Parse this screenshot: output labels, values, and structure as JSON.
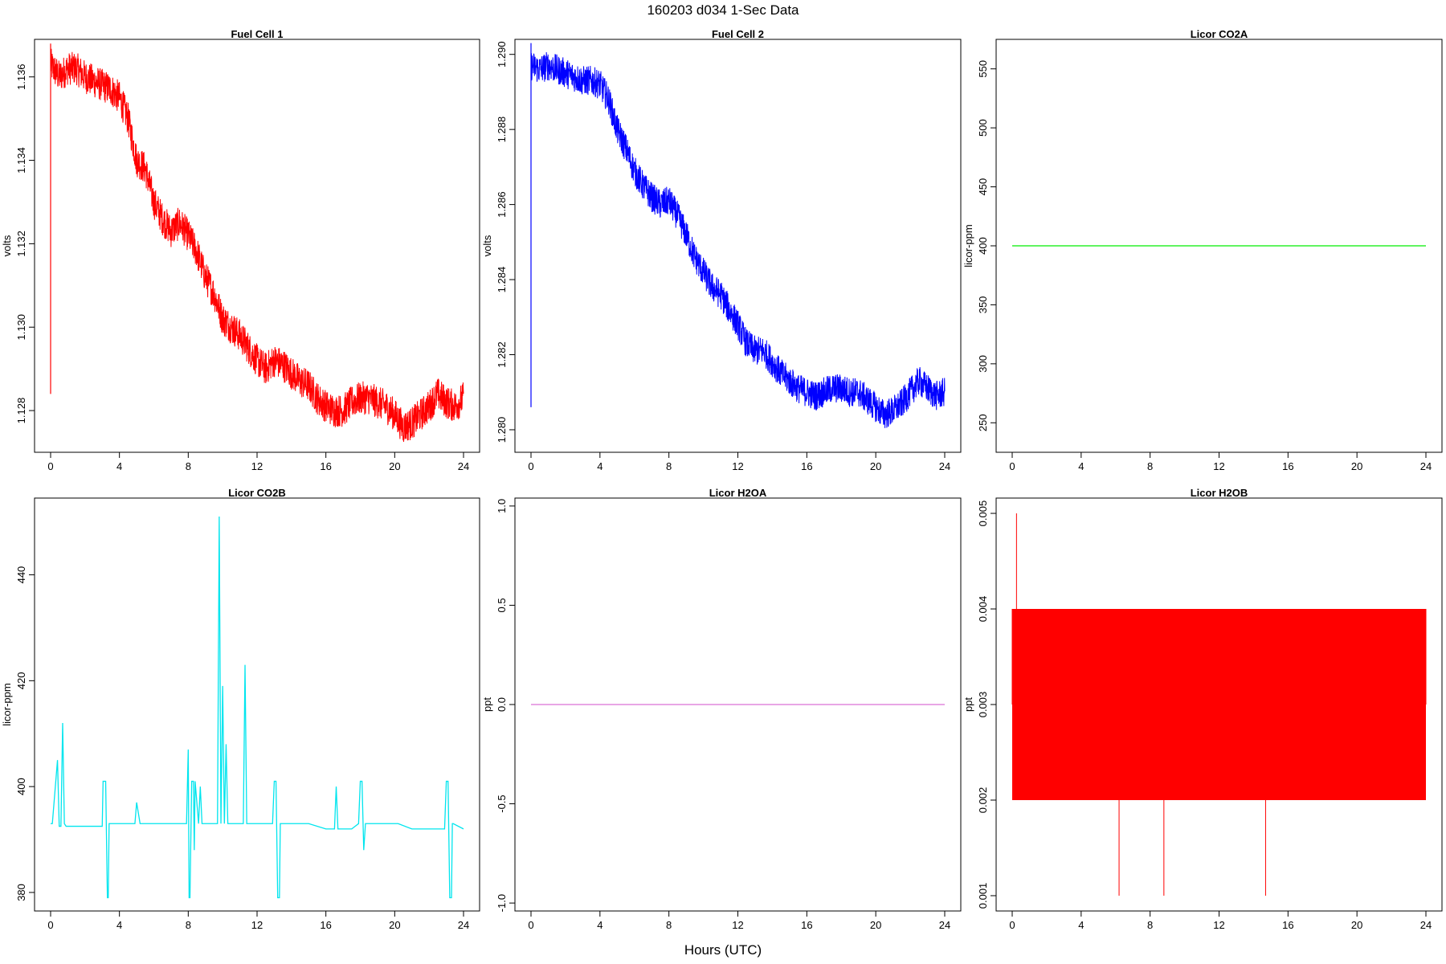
{
  "title": "160203   d034   1-Sec Data",
  "xlabel": "Hours (UTC)",
  "chart_data": [
    {
      "type": "line",
      "title": "Fuel Cell 1",
      "ylabel": "volts",
      "color": "#ff0000",
      "xlim": [
        0,
        24
      ],
      "ylim": [
        1.127,
        1.1369
      ],
      "xticks": [
        "0",
        "4",
        "8",
        "12",
        "16",
        "20",
        "24"
      ],
      "yticks": [
        "1.128",
        "1.130",
        "1.132",
        "1.134",
        "1.136"
      ],
      "noise": 0.0004,
      "spike": {
        "x": 0.0,
        "low": 1.1284,
        "high": 1.1368
      },
      "series": [
        {
          "x": [
            0,
            0.5,
            1,
            1.5,
            2,
            2.5,
            3,
            3.5,
            4,
            4.5,
            5,
            5.5,
            6,
            6.5,
            7,
            7.5,
            8,
            8.5,
            9,
            9.5,
            10,
            10.5,
            11,
            11.5,
            12,
            12.5,
            13,
            13.5,
            14,
            14.5,
            15,
            15.5,
            16,
            16.5,
            17,
            17.5,
            18,
            18.5,
            19,
            19.5,
            20,
            20.5,
            21,
            21.5,
            22,
            22.5,
            23,
            23.5,
            24
          ],
          "y": [
            1.1363,
            1.136,
            1.1362,
            1.1362,
            1.136,
            1.1359,
            1.1358,
            1.1357,
            1.1355,
            1.135,
            1.134,
            1.1338,
            1.133,
            1.1326,
            1.1323,
            1.1325,
            1.1322,
            1.1318,
            1.1312,
            1.1308,
            1.1302,
            1.13,
            1.1298,
            1.1295,
            1.1292,
            1.129,
            1.1292,
            1.1291,
            1.1289,
            1.1287,
            1.1286,
            1.1283,
            1.1281,
            1.128,
            1.128,
            1.1282,
            1.1283,
            1.1283,
            1.1282,
            1.1281,
            1.1279,
            1.1276,
            1.1277,
            1.1279,
            1.1281,
            1.1284,
            1.1282,
            1.1281,
            1.1283
          ]
        }
      ]
    },
    {
      "type": "line",
      "title": "Fuel Cell 2",
      "ylabel": "volts",
      "color": "#0000ff",
      "xlim": [
        0,
        24
      ],
      "ylim": [
        1.2794,
        1.2904
      ],
      "xticks": [
        "0",
        "4",
        "8",
        "12",
        "16",
        "20",
        "24"
      ],
      "yticks": [
        "1.280",
        "1.282",
        "1.284",
        "1.286",
        "1.288",
        "1.290"
      ],
      "noise": 0.0004,
      "spike": {
        "x": 0.0,
        "low": 1.2806,
        "high": 1.2903
      },
      "series": [
        {
          "x": [
            0,
            0.5,
            1,
            1.5,
            2,
            2.5,
            3,
            3.5,
            4,
            4.5,
            5,
            5.5,
            6,
            6.5,
            7,
            7.5,
            8,
            8.5,
            9,
            9.5,
            10,
            10.5,
            11,
            11.5,
            12,
            12.5,
            13,
            13.5,
            14,
            14.5,
            15,
            15.5,
            16,
            16.5,
            17,
            17.5,
            18,
            18.5,
            19,
            19.5,
            20,
            20.5,
            21,
            21.5,
            22,
            22.5,
            23,
            23.5,
            24
          ],
          "y": [
            1.2897,
            1.2896,
            1.2897,
            1.2896,
            1.2895,
            1.2894,
            1.2893,
            1.2893,
            1.2892,
            1.2888,
            1.288,
            1.2875,
            1.2869,
            1.2865,
            1.2862,
            1.286,
            1.2861,
            1.2857,
            1.2852,
            1.2846,
            1.2842,
            1.2838,
            1.2836,
            1.2832,
            1.2828,
            1.2823,
            1.2821,
            1.2821,
            1.2818,
            1.2815,
            1.2813,
            1.2811,
            1.281,
            1.2809,
            1.281,
            1.2811,
            1.2811,
            1.281,
            1.281,
            1.2808,
            1.2806,
            1.2804,
            1.2805,
            1.2807,
            1.281,
            1.2813,
            1.2811,
            1.2809,
            1.281
          ]
        }
      ]
    },
    {
      "type": "line",
      "title": "Licor CO2A",
      "ylabel": "licor-ppm",
      "color": "#00ee00",
      "xlim": [
        0,
        24
      ],
      "ylim": [
        225,
        575
      ],
      "xticks": [
        "0",
        "4",
        "8",
        "12",
        "16",
        "20",
        "24"
      ],
      "yticks": [
        "250",
        "300",
        "350",
        "400",
        "450",
        "500",
        "550"
      ],
      "series": [
        {
          "x": [
            0,
            24
          ],
          "y": [
            400,
            400
          ]
        }
      ]
    },
    {
      "type": "line",
      "title": "Licor CO2B",
      "ylabel": "licor-ppm",
      "color": "#00e5ee",
      "xlim": [
        0,
        24
      ],
      "ylim": [
        376.5,
        454.5
      ],
      "xticks": [
        "0",
        "4",
        "8",
        "12",
        "16",
        "20",
        "24"
      ],
      "yticks": [
        "380",
        "400",
        "420",
        "440"
      ],
      "series": [
        {
          "x": [
            0,
            0.1,
            0.4,
            0.5,
            0.6,
            0.7,
            0.8,
            0.9,
            1.0,
            2.0,
            3.0,
            3.05,
            3.1,
            3.2,
            3.3,
            3.35,
            3.4,
            4.0,
            4.9,
            5.0,
            5.2,
            5.5,
            6,
            7,
            7.9,
            8.0,
            8.05,
            8.1,
            8.2,
            8.3,
            8.35,
            8.4,
            8.6,
            8.7,
            8.8,
            9.0,
            9.2,
            9.4,
            9.7,
            9.8,
            9.9,
            10.0,
            10.1,
            10.2,
            10.3,
            10.4,
            10.5,
            11.0,
            11.2,
            11.3,
            11.4,
            11.5,
            12,
            12.9,
            13.0,
            13.05,
            13.1,
            13.2,
            13.3,
            13.35,
            13.4,
            14,
            15,
            16,
            16.5,
            16.6,
            16.7,
            17,
            17.5,
            17.9,
            18.0,
            18.05,
            18.1,
            18.2,
            18.3,
            18.35,
            18.4,
            19,
            20,
            20.2,
            21,
            22,
            22.9,
            23.0,
            23.05,
            23.1,
            23.2,
            23.3,
            23.35,
            23.4,
            24
          ],
          "y": [
            393,
            393,
            405,
            392.5,
            392.5,
            412,
            393,
            392.5,
            392.5,
            392.5,
            392.5,
            401,
            401,
            401,
            379,
            379,
            393,
            393,
            393,
            397,
            393,
            393,
            393,
            393,
            393,
            407,
            379,
            379,
            401,
            401,
            388,
            401,
            393,
            400,
            393,
            393,
            393,
            393,
            393,
            451,
            393,
            419,
            393,
            408,
            393,
            393,
            393,
            393,
            393,
            423,
            393,
            393,
            393,
            393,
            401,
            401,
            401,
            379,
            379,
            393,
            393,
            393,
            393,
            392,
            392,
            400,
            392,
            392,
            392,
            393,
            401,
            401,
            401,
            388,
            393,
            393,
            393,
            393,
            393,
            393,
            392,
            392,
            392,
            401,
            401,
            401,
            379,
            379,
            393,
            393,
            392
          ]
        }
      ]
    },
    {
      "type": "line",
      "title": "Licor H2OA",
      "ylabel": "ppt",
      "color": "#da70d6",
      "xlim": [
        0,
        24
      ],
      "ylim": [
        -1.04,
        1.04
      ],
      "xticks": [
        "0",
        "4",
        "8",
        "12",
        "16",
        "20",
        "24"
      ],
      "yticks": [
        "-1.0",
        "-0.5",
        "0.0",
        "0.5",
        "1.0"
      ],
      "series": [
        {
          "x": [
            0,
            24
          ],
          "y": [
            0,
            0
          ]
        }
      ]
    },
    {
      "type": "line",
      "title": "Licor H2OB",
      "ylabel": "ppt",
      "color": "#ff0000",
      "xlim": [
        0,
        24
      ],
      "ylim": [
        0.00084,
        0.00516
      ],
      "xticks": [
        "0",
        "4",
        "8",
        "12",
        "16",
        "20",
        "24"
      ],
      "yticks": [
        "0.001",
        "0.002",
        "0.003",
        "0.004",
        "0.005"
      ],
      "band": {
        "x0": 0.0,
        "x1": 24.0,
        "low": 0.002,
        "mid": 0.003,
        "high": 0.004
      },
      "spikes": [
        {
          "x": 0.25,
          "y": 0.005
        },
        {
          "x": 6.2,
          "y": 0.001
        },
        {
          "x": 8.8,
          "y": 0.001
        },
        {
          "x": 14.7,
          "y": 0.001
        }
      ],
      "series": [
        {
          "x": [
            0,
            24
          ],
          "y": [
            0.002,
            0.004
          ]
        }
      ]
    }
  ]
}
